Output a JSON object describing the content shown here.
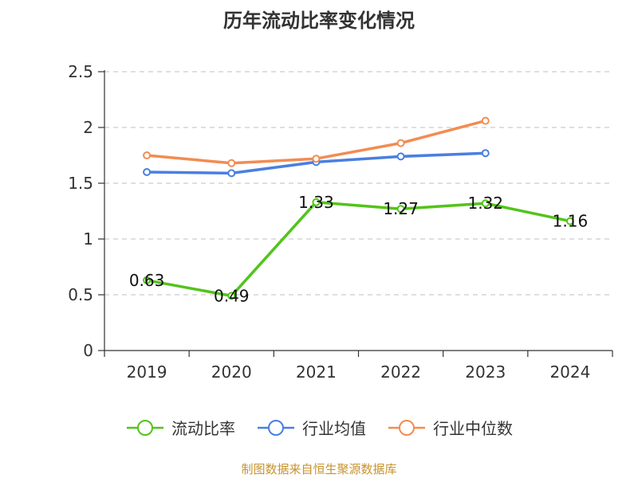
{
  "chart_data": {
    "type": "line",
    "title": "历年流动比率变化情况",
    "categories": [
      "2019",
      "2020",
      "2021",
      "2022",
      "2023",
      "2024"
    ],
    "ylim": [
      0,
      2.5
    ],
    "yticks": [
      0,
      0.5,
      1,
      1.5,
      2,
      2.5
    ],
    "ytick_labels": [
      "0",
      "0.5",
      "1",
      "1.5",
      "2",
      "2.5"
    ],
    "grid": true,
    "legend_placement": "bottom-center",
    "series": [
      {
        "name": "流动比率",
        "color": "#52c41a",
        "values": [
          0.63,
          0.49,
          1.33,
          1.27,
          1.32,
          1.16
        ],
        "data_labels": [
          "0.63",
          "0.49",
          "1.33",
          "1.27",
          "1.32",
          "1.16"
        ]
      },
      {
        "name": "行业均值",
        "color": "#4a7fe0",
        "values": [
          1.6,
          1.59,
          1.69,
          1.74,
          1.77,
          null
        ]
      },
      {
        "name": "行业中位数",
        "color": "#f28c52",
        "values": [
          1.75,
          1.68,
          1.72,
          1.86,
          2.06,
          null
        ]
      }
    ],
    "source": "制图数据来自恒生聚源数据库"
  }
}
